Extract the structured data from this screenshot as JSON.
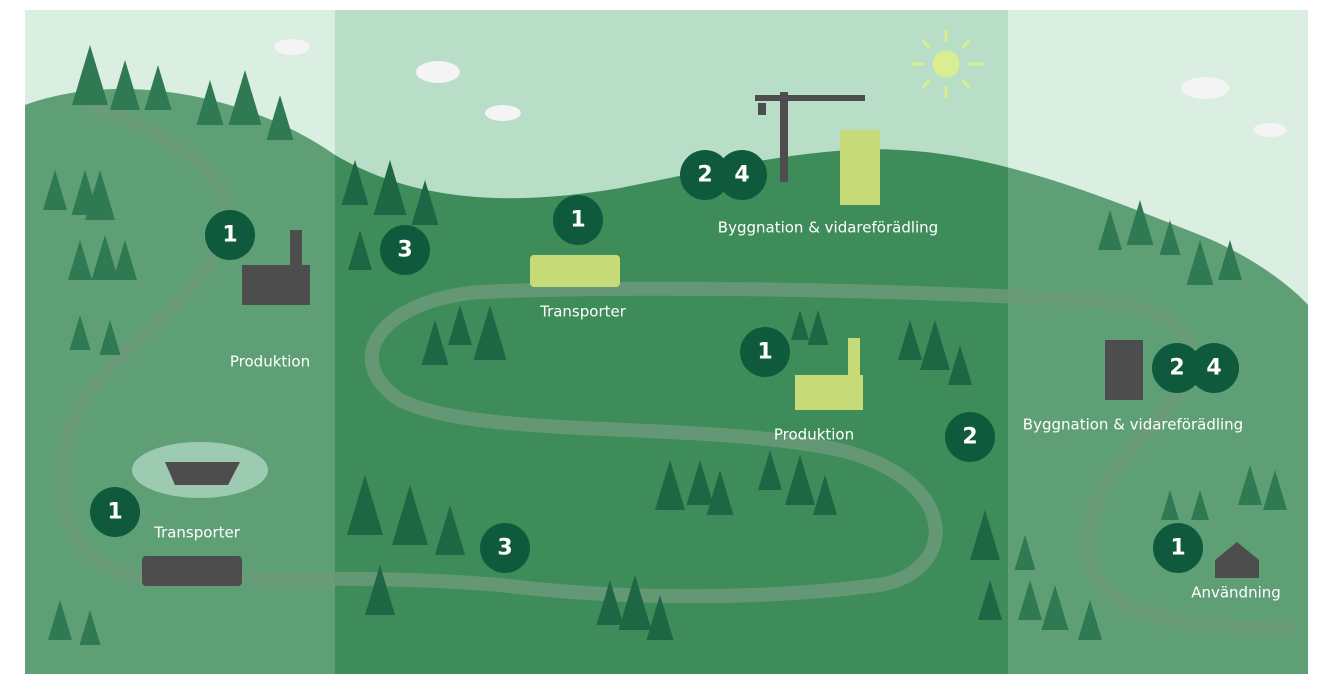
{
  "labels": [
    "Produktion",
    "Transporter",
    "Transporter",
    "Byggnation & vidareförädling",
    "Produktion",
    "Byggnation & vidareförädling",
    "Användning"
  ],
  "badges": [
    1,
    3,
    1,
    2,
    4,
    1,
    2,
    2,
    4,
    1,
    3,
    1
  ]
}
